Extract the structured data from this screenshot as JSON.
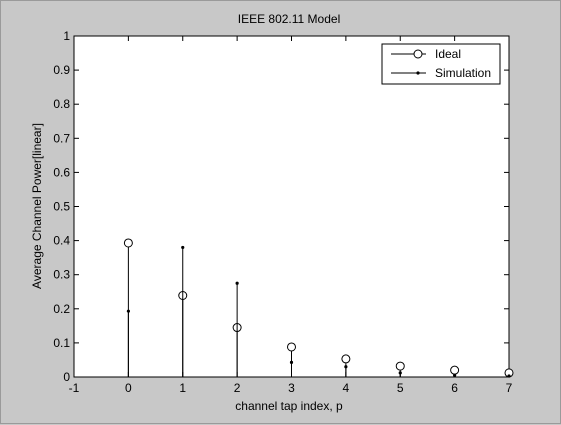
{
  "chart_data": {
    "type": "stem",
    "title": "IEEE 802.11 Model",
    "xlabel": "channel tap index, p",
    "ylabel": "Average Channel Power[linear]",
    "xlim": [
      -1,
      7
    ],
    "ylim": [
      0,
      1
    ],
    "xticks": [
      "-1",
      "0",
      "1",
      "2",
      "3",
      "4",
      "5",
      "6",
      "7"
    ],
    "yticks": [
      "0",
      "0.1",
      "0.2",
      "0.3",
      "0.4",
      "0.5",
      "0.6",
      "0.7",
      "0.8",
      "0.9",
      "1"
    ],
    "grid": false,
    "legend_position": "top-right",
    "series": [
      {
        "name": "Ideal",
        "marker": "circle",
        "x": [
          0,
          1,
          2,
          3,
          4,
          5,
          6,
          7
        ],
        "values": [
          0.393,
          0.239,
          0.145,
          0.088,
          0.053,
          0.032,
          0.02,
          0.012
        ]
      },
      {
        "name": "Simulation",
        "marker": "dot",
        "x": [
          0,
          1,
          2,
          3,
          4,
          5,
          6,
          7
        ],
        "values": [
          0.193,
          0.38,
          0.275,
          0.043,
          0.03,
          0.012,
          0.005,
          0.003
        ]
      }
    ]
  }
}
